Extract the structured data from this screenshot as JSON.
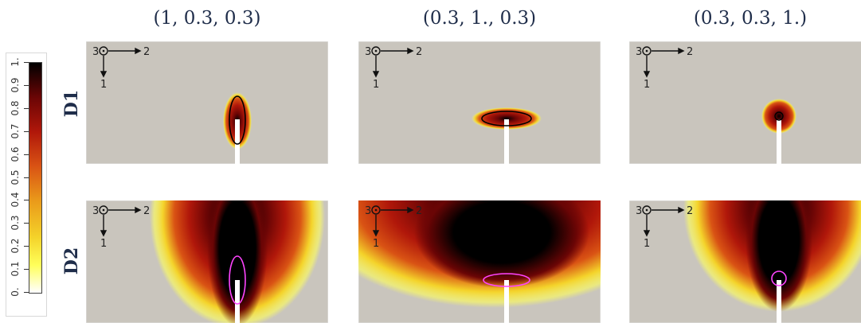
{
  "columns": [
    {
      "label": "(1, 0.3, 0.3)"
    },
    {
      "label": "(0.3, 1., 0.3)"
    },
    {
      "label": "(0.3, 0.3, 1.)"
    }
  ],
  "rows": [
    {
      "label": "D1"
    },
    {
      "label": "D2"
    }
  ],
  "axes": {
    "out_of_plane": "3",
    "horizontal": "2",
    "vertical": "1"
  },
  "colorbar": {
    "ticks": [
      "0.",
      "0.1",
      "0.2",
      "0.3",
      "0.4",
      "0.5",
      "0.6",
      "0.7",
      "0.8",
      "0.9",
      "1."
    ],
    "tick_values": [
      0,
      0.1,
      0.2,
      0.3,
      0.4,
      0.5,
      0.6,
      0.7,
      0.8,
      0.9,
      1.0
    ],
    "colors": [
      "#ffffff",
      "#ffff5a",
      "#f4d32a",
      "#ea9a1a",
      "#d95314",
      "#b0170a",
      "#6a0505",
      "#000000"
    ]
  },
  "colors": {
    "background": "#c9c5bd",
    "notch": "#ffffff",
    "d1_ellipse": "#000000",
    "d2_ellipse": "#ff44ff",
    "title_text": "#1f2d4a"
  }
}
